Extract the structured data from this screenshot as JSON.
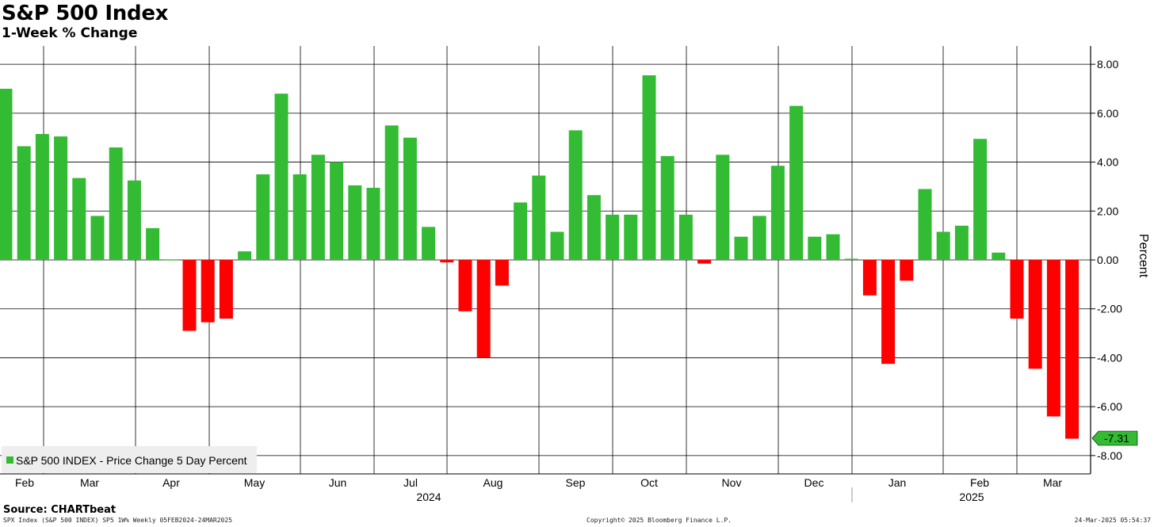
{
  "title": "S&P 500 Index",
  "subtitle": "1-Week % Change",
  "source": "Source: CHARTbeat",
  "footer": {
    "left": "SPX Index (S&P 500 INDEX) SP5 1W% Weekly 05FEB2024-24MAR2025",
    "center": "Copyright© 2025 Bloomberg Finance L.P.",
    "right": "24-Mar-2025 05:54:37"
  },
  "colors": {
    "positive": "#33bb33",
    "negative": "#ff0000",
    "last_value_box": "#33bb33"
  },
  "chart_data": {
    "type": "bar",
    "ylabel": "Percent",
    "ylim": [
      -8,
      8
    ],
    "yticks": [
      "8.00",
      "6.00",
      "4.00",
      "2.00",
      "0.00",
      "-2.00",
      "-4.00",
      "-6.00",
      "-8.00"
    ],
    "ytick_values": [
      8,
      6,
      4,
      2,
      0,
      -2,
      -4,
      -6,
      -8
    ],
    "grid": true,
    "legend": {
      "label": "S&P 500 INDEX - Price Change 5 Day Percent",
      "placement": "bottom-left"
    },
    "last_value_label": "-7.31",
    "month_labels": [
      "Feb",
      "Mar",
      "Apr",
      "May",
      "Jun",
      "Jul",
      "Aug",
      "Sep",
      "Oct",
      "Nov",
      "Dec",
      "Jan",
      "Feb",
      "Mar"
    ],
    "year_labels": [
      "2024",
      "2025"
    ],
    "series": [
      {
        "name": "S&P 500 INDEX - Price Change 5 Day Percent",
        "values": [
          7.0,
          4.65,
          5.15,
          5.05,
          3.35,
          1.8,
          4.6,
          3.25,
          1.3,
          0.0,
          -2.9,
          -2.55,
          -2.4,
          0.35,
          3.5,
          6.8,
          3.5,
          4.3,
          4.0,
          3.05,
          2.95,
          5.5,
          5.0,
          1.35,
          -0.1,
          -2.1,
          -4.0,
          -1.05,
          2.35,
          3.45,
          1.15,
          5.3,
          2.65,
          1.85,
          1.85,
          7.55,
          4.25,
          1.85,
          -0.15,
          4.3,
          0.95,
          1.8,
          3.85,
          6.3,
          0.95,
          1.05,
          0.05,
          -1.45,
          -4.25,
          -0.85,
          2.9,
          1.15,
          1.4,
          4.95,
          0.3,
          -2.4,
          -4.45,
          -6.4,
          -7.31
        ]
      }
    ]
  }
}
